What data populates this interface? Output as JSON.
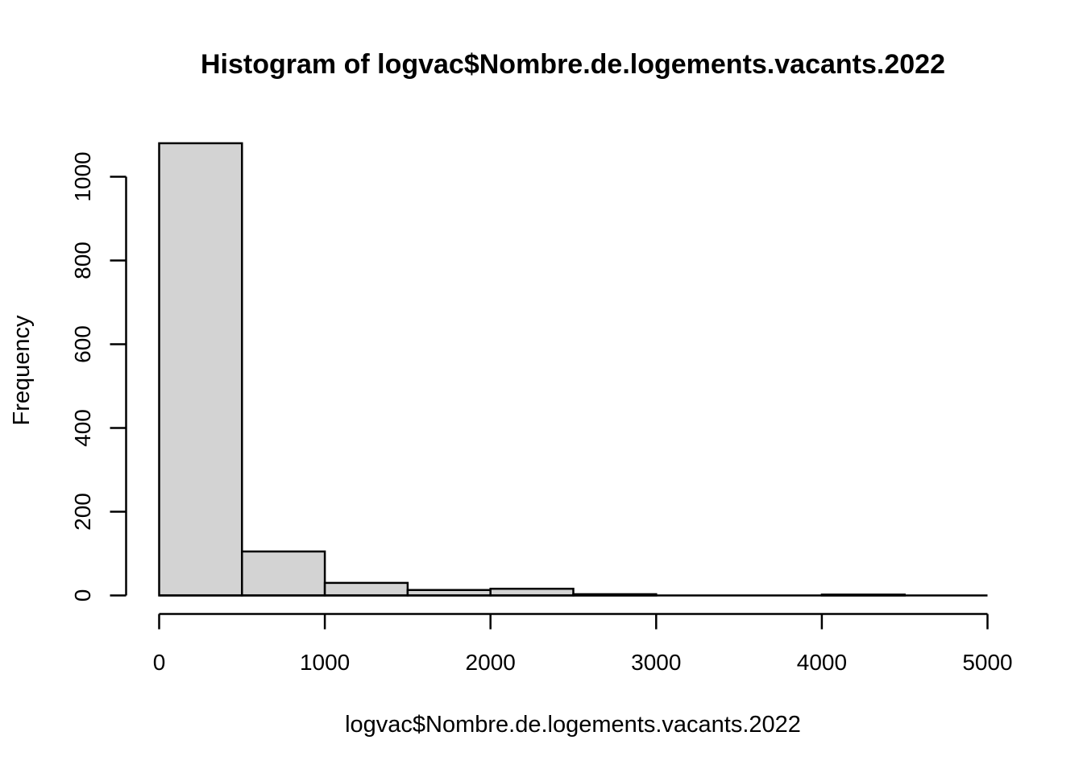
{
  "figure": {
    "background": "#ffffff",
    "text_color": "#000000"
  },
  "chart_data": {
    "type": "bar",
    "subtype": "histogram",
    "title": "Histogram of logvac$Nombre.de.logements.vacants.2022",
    "xlabel": "logvac$Nombre.de.logements.vacants.2022",
    "ylabel": "Frequency",
    "bin_edges": [
      0,
      500,
      1000,
      1500,
      2000,
      2500,
      3000,
      3500,
      4000,
      4500,
      5000
    ],
    "counts": [
      1080,
      105,
      30,
      13,
      16,
      3,
      0,
      0,
      2,
      0
    ],
    "x_ticks": [
      0,
      1000,
      2000,
      3000,
      4000,
      5000
    ],
    "y_ticks": [
      0,
      200,
      400,
      600,
      800,
      1000
    ],
    "x_tick_labels": [
      "0",
      "1000",
      "2000",
      "3000",
      "4000",
      "5000"
    ],
    "y_tick_labels": [
      "0",
      "200",
      "400",
      "600",
      "800",
      "1000"
    ],
    "xlim": [
      0,
      5000
    ],
    "ylim": [
      0,
      1000
    ],
    "bar_fill": "#D3D3D3",
    "bar_stroke": "#000000",
    "axis_color": "#000000",
    "grid": false,
    "legend": false
  }
}
